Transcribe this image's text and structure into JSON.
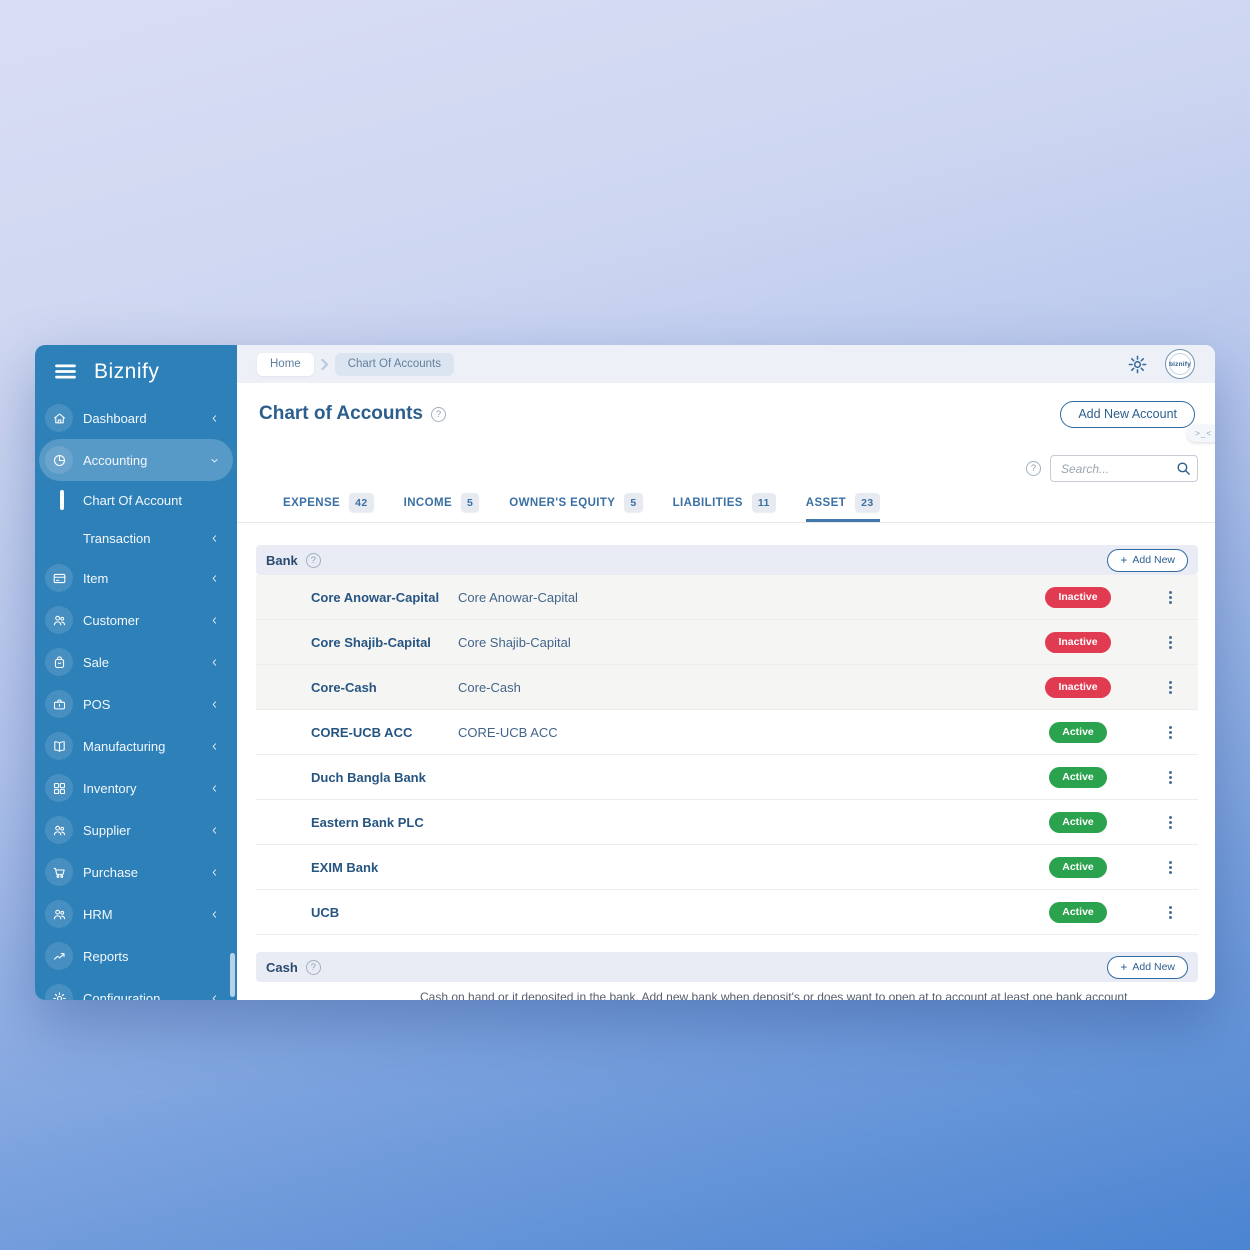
{
  "window": {
    "brand": "Biznify"
  },
  "sidebar": {
    "items": [
      {
        "icon": "home",
        "label": "Dashboard",
        "chevron": "left"
      },
      {
        "icon": "pie",
        "label": "Accounting",
        "chevron": "down",
        "active": true
      },
      {
        "sub": true,
        "label": "Chart Of Account",
        "selected": true
      },
      {
        "sub": true,
        "label": "Transaction",
        "chevron": "left"
      },
      {
        "icon": "card",
        "label": "Item",
        "chevron": "left"
      },
      {
        "icon": "users",
        "label": "Customer",
        "chevron": "left"
      },
      {
        "icon": "bag",
        "label": "Sale",
        "chevron": "left"
      },
      {
        "icon": "briefcase",
        "label": "POS",
        "chevron": "left"
      },
      {
        "icon": "book",
        "label": "Manufacturing",
        "chevron": "left"
      },
      {
        "icon": "grid",
        "label": "Inventory",
        "chevron": "left"
      },
      {
        "icon": "users",
        "label": "Supplier",
        "chevron": "left"
      },
      {
        "icon": "cart",
        "label": "Purchase",
        "chevron": "left"
      },
      {
        "icon": "users",
        "label": "HRM",
        "chevron": "left"
      },
      {
        "icon": "trend",
        "label": "Reports"
      },
      {
        "icon": "gear",
        "label": "Configuration",
        "chevron": "left"
      }
    ]
  },
  "breadcrumb": {
    "home": "Home",
    "current": "Chart Of Accounts"
  },
  "topbar": {
    "avatar_text": "biznify"
  },
  "page": {
    "title": "Chart of Accounts",
    "add_account_label": "Add New Account",
    "collapse_handle": ">_<",
    "help_glyph": "?"
  },
  "search": {
    "placeholder": "Search..."
  },
  "tabs": [
    {
      "label": "EXPENSE",
      "count": "42"
    },
    {
      "label": "INCOME",
      "count": "5"
    },
    {
      "label": "OWNER'S EQUITY",
      "count": "5"
    },
    {
      "label": "LIABILITIES",
      "count": "11"
    },
    {
      "label": "ASSET",
      "count": "23",
      "active": true
    }
  ],
  "sections": [
    {
      "title": "Bank",
      "plus": "+",
      "add_label": "Add New",
      "rows": [
        {
          "name": "Core Anowar-Capital",
          "description": "Core Anowar-Capital",
          "status": "Inactive",
          "shaded": true
        },
        {
          "name": "Core Shajib-Capital",
          "description": "Core Shajib-Capital",
          "status": "Inactive",
          "shaded": true
        },
        {
          "name": "Core-Cash",
          "description": "Core-Cash",
          "status": "Inactive",
          "shaded": true
        },
        {
          "name": "CORE-UCB ACC",
          "description": "CORE-UCB ACC",
          "status": "Active",
          "shaded": false
        },
        {
          "name": "Duch Bangla Bank",
          "description": "",
          "status": "Active",
          "shaded": false
        },
        {
          "name": "Eastern Bank PLC",
          "description": "",
          "status": "Active",
          "shaded": false
        },
        {
          "name": "EXIM Bank",
          "description": "",
          "status": "Active",
          "shaded": false
        },
        {
          "name": "UCB",
          "description": "",
          "status": "Active",
          "shaded": false
        }
      ]
    },
    {
      "title": "Cash",
      "plus": "+",
      "add_label": "Add New",
      "rows": [],
      "note": "Cash on hand or it deposited in the bank. Add new bank when deposit's or does want to open at to account at least one bank account"
    }
  ],
  "colors": {
    "sidebar": "#2e80b9",
    "accent": "#2c5f8d",
    "active_badge": "#2ba24d",
    "inactive_badge": "#e13b52",
    "tab_underline": "#4278ac",
    "section_header_bg": "#e9ecf5"
  }
}
